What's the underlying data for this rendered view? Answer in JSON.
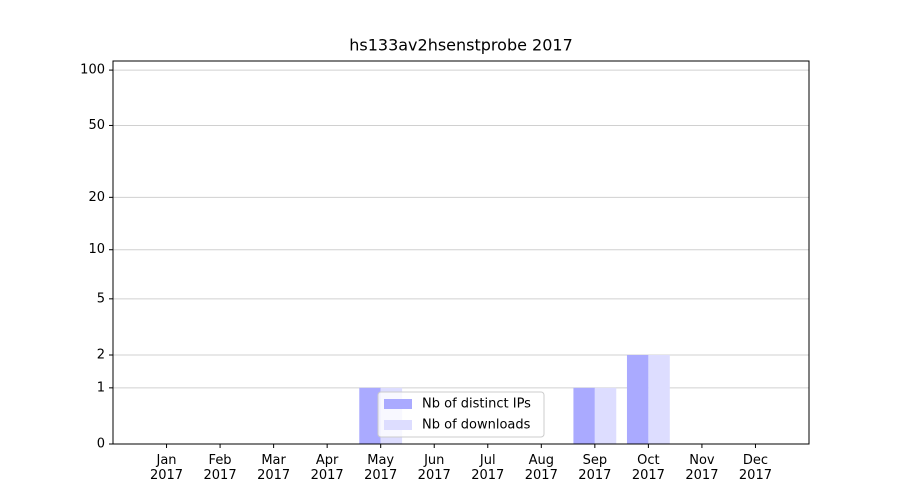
{
  "chart_data": {
    "type": "bar",
    "title": "hs133av2hsenstprobe 2017",
    "categories": [
      "Jan\n2017",
      "Feb\n2017",
      "Mar\n2017",
      "Apr\n2017",
      "May\n2017",
      "Jun\n2017",
      "Jul\n2017",
      "Aug\n2017",
      "Sep\n2017",
      "Oct\n2017",
      "Nov\n2017",
      "Dec\n2017"
    ],
    "series": [
      {
        "name": "Nb of distinct IPs",
        "color": "#aaaaff",
        "values": [
          0,
          0,
          0,
          0,
          1,
          0,
          0,
          0,
          1,
          2,
          0,
          0
        ]
      },
      {
        "name": "Nb of downloads",
        "color": "#ddddff",
        "values": [
          0,
          0,
          0,
          0,
          1,
          0,
          0,
          0,
          1,
          2,
          0,
          0
        ]
      }
    ],
    "yscale": "log1p",
    "ylim": [
      0,
      112
    ],
    "yticks": [
      0,
      1,
      2,
      5,
      10,
      20,
      50,
      100
    ],
    "grid": true,
    "legend": "lower center"
  }
}
